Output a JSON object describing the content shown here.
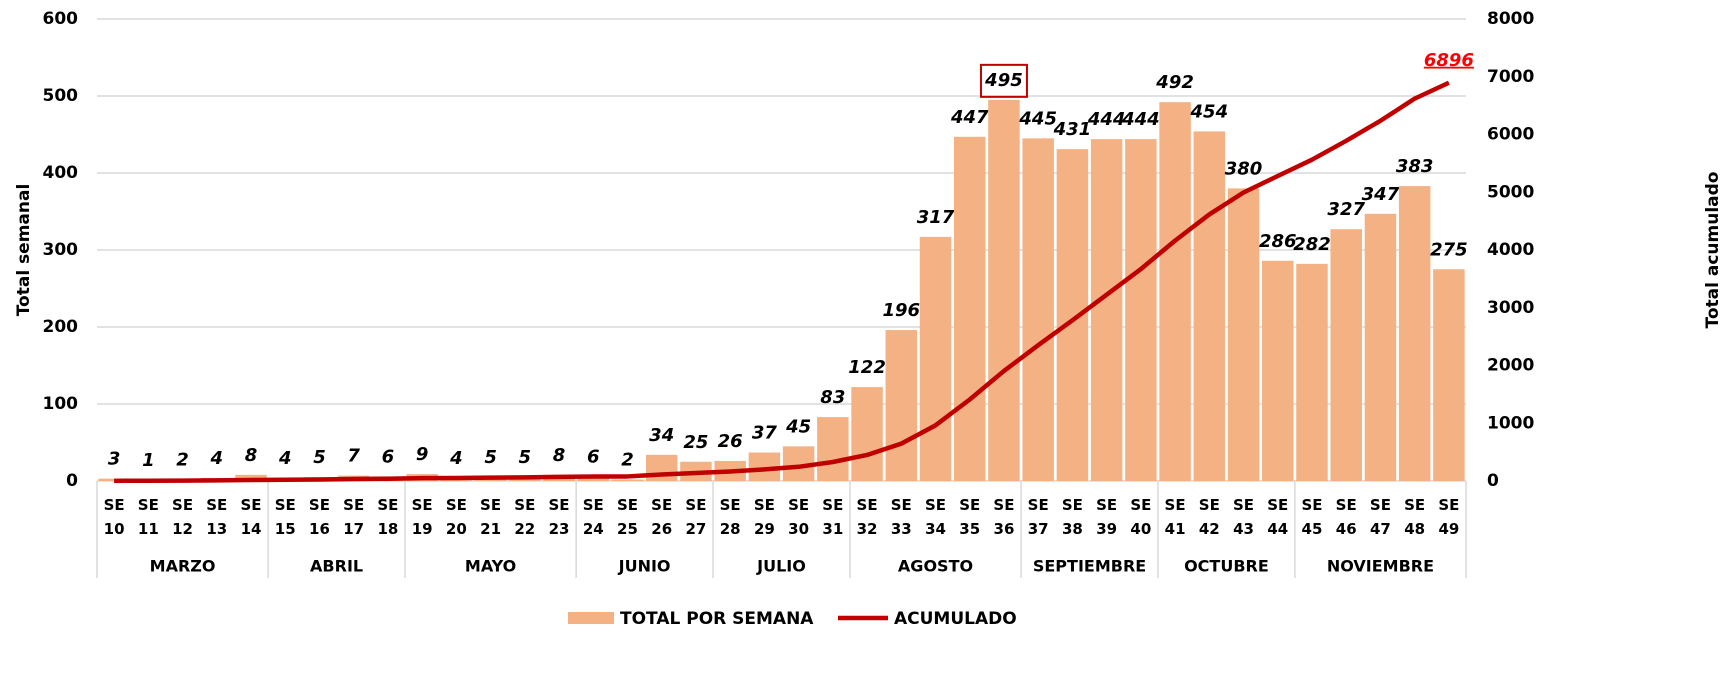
{
  "chart_data": {
    "type": "bar",
    "groups": [
      {
        "name": "MARZO",
        "categories": [
          "SE 10",
          "SE 11",
          "SE 12",
          "SE 13",
          "SE 14"
        ]
      },
      {
        "name": "ABRIL",
        "categories": [
          "SE 15",
          "SE 16",
          "SE 17",
          "SE 18"
        ]
      },
      {
        "name": "MAYO",
        "categories": [
          "SE 19",
          "SE 20",
          "SE 21",
          "SE 22",
          "SE 23"
        ]
      },
      {
        "name": "JUNIO",
        "categories": [
          "SE 24",
          "SE 25",
          "SE 26",
          "SE 27"
        ]
      },
      {
        "name": "JULIO",
        "categories": [
          "SE 28",
          "SE 29",
          "SE 30",
          "SE 31"
        ]
      },
      {
        "name": "AGOSTO",
        "categories": [
          "SE 32",
          "SE 33",
          "SE 34",
          "SE 35",
          "SE 36"
        ]
      },
      {
        "name": "SEPTIEMBRE",
        "categories": [
          "SE 37",
          "SE 38",
          "SE 39",
          "SE 40"
        ]
      },
      {
        "name": "OCTUBRE",
        "categories": [
          "SE 41",
          "SE 42",
          "SE 43",
          "SE 44"
        ]
      },
      {
        "name": "NOVIEMBRE",
        "categories": [
          "SE 45",
          "SE 46",
          "SE 47",
          "SE 48",
          "SE 49"
        ]
      }
    ],
    "series": [
      {
        "name": "TOTAL POR SEMANA",
        "type": "bar",
        "color": "#f4b183",
        "values": [
          3,
          1,
          2,
          4,
          8,
          4,
          5,
          7,
          6,
          9,
          4,
          5,
          5,
          8,
          6,
          2,
          34,
          25,
          26,
          37,
          45,
          83,
          122,
          196,
          317,
          447,
          495,
          445,
          431,
          444,
          444,
          492,
          454,
          380,
          286,
          282,
          327,
          347,
          383,
          275
        ]
      },
      {
        "name": "ACUMULADO",
        "type": "line",
        "axis": "y2",
        "color": "#c00000",
        "values": [
          3,
          4,
          6,
          10,
          18,
          22,
          27,
          34,
          40,
          49,
          53,
          58,
          63,
          71,
          77,
          79,
          113,
          138,
          164,
          201,
          246,
          329,
          451,
          647,
          964,
          1411,
          1906,
          2351,
          2782,
          3226,
          3670,
          4162,
          4616,
          4996,
          5282,
          5564,
          5891,
          6238,
          6621,
          6896
        ]
      }
    ],
    "ylabel": "Total semanal",
    "y2label": "Total acumulado",
    "ylim": [
      0,
      600
    ],
    "yticks": [
      0,
      100,
      200,
      300,
      400,
      500,
      600
    ],
    "y2lim": [
      0,
      8000
    ],
    "y2ticks": [
      0,
      1000,
      2000,
      3000,
      4000,
      5000,
      6000,
      7000,
      8000
    ],
    "grid": true,
    "legend": "bottom"
  }
}
